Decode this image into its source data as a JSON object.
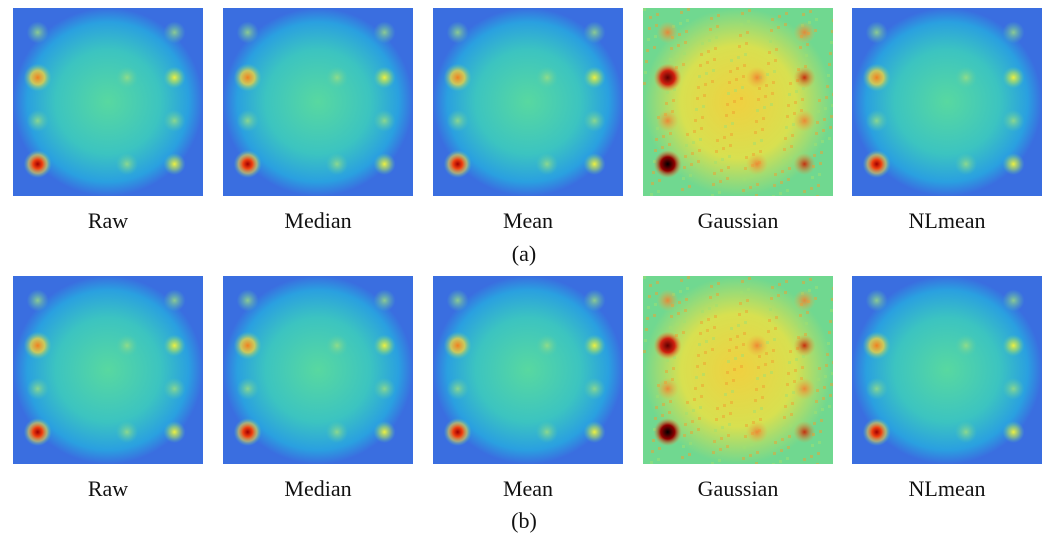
{
  "rows": [
    {
      "labels": [
        "Raw",
        "Median",
        "Mean",
        "Gaussian",
        "NLmean"
      ],
      "caption": "(a)"
    },
    {
      "labels": [
        "Raw",
        "Median",
        "Mean",
        "Gaussian",
        "NLmean"
      ],
      "caption": "(b)"
    }
  ]
}
